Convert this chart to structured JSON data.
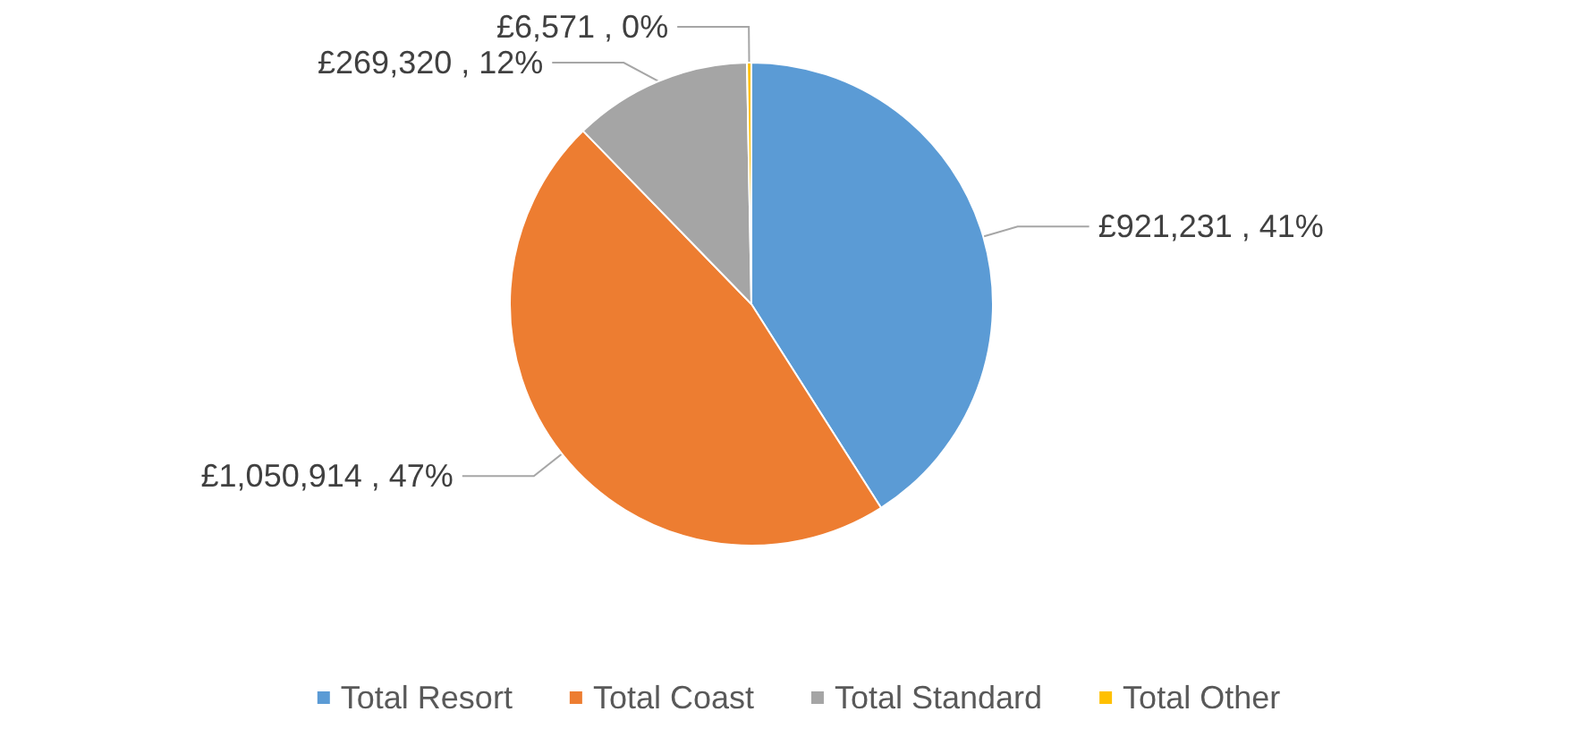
{
  "chart_data": {
    "type": "pie",
    "categories": [
      "Total Resort",
      "Total Coast",
      "Total Standard",
      "Total Other"
    ],
    "values": [
      921231,
      1050914,
      269320,
      6571
    ],
    "colors": [
      "#5b9bd5",
      "#ed7d31",
      "#a5a5a5",
      "#ffc000"
    ],
    "value_labels": [
      "£921,231 , 41%",
      "£1,050,914 , 47%",
      "£269,320 , 12%",
      "£6,571 , 0%"
    ],
    "legend": "bottom"
  }
}
